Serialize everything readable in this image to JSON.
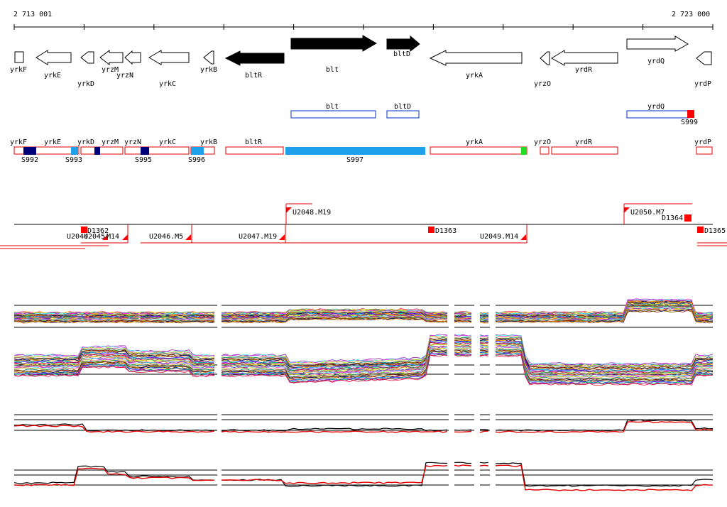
{
  "ruler": {
    "start_label": "2 713 001",
    "end_label": "2 723 000"
  },
  "colors": {
    "gene_fill": "#000000",
    "gene_outline": "#000000",
    "box_blue": "#0033cc",
    "box_red": "#e00000",
    "seg_dark": "#00007a",
    "seg_light": "#1ea0ea",
    "seg_green": "#22dd22",
    "marker_red": "#ff0000"
  },
  "genes_top": [
    {
      "name": "yrkF",
      "strand": "box",
      "filled": false
    },
    {
      "name": "yrkE",
      "strand": "-",
      "filled": false
    },
    {
      "name": "yrkD",
      "strand": "-",
      "filled": false
    },
    {
      "name": "yrzM",
      "strand": "-",
      "filled": false
    },
    {
      "name": "yrzN",
      "strand": "-",
      "filled": false
    },
    {
      "name": "yrkC",
      "strand": "-",
      "filled": false
    },
    {
      "name": "yrkB",
      "strand": "-",
      "filled": false
    },
    {
      "name": "bltR",
      "strand": "-",
      "filled": true
    },
    {
      "name": "blt",
      "strand": "+",
      "filled": true
    },
    {
      "name": "bltD",
      "strand": "+",
      "filled": true
    },
    {
      "name": "yrkA",
      "strand": "-",
      "filled": false
    },
    {
      "name": "yrzO",
      "strand": "-",
      "filled": false
    },
    {
      "name": "yrdR",
      "strand": "-",
      "filled": false
    },
    {
      "name": "yrdQ",
      "strand": "+",
      "filled": false
    },
    {
      "name": "yrdP",
      "strand": "-",
      "filled": false
    }
  ],
  "operon_boxes": [
    {
      "name": "blt"
    },
    {
      "name": "bltD"
    },
    {
      "name": "yrdQ",
      "site": "S999"
    }
  ],
  "segment_row": {
    "gene_labels": [
      "yrkF",
      "yrkE",
      "yrkD",
      "yrzM",
      "yrzN",
      "yrkC",
      "yrkB",
      "bltR",
      "yrkA",
      "yrzO",
      "yrdR",
      "yrdP"
    ],
    "site_labels": [
      "S992",
      "S993",
      "S995",
      "S996",
      "S997"
    ]
  },
  "feature_labels": [
    "U2048.M19",
    "U2050.M7",
    "D1364",
    "D1362",
    "U2044",
    "U2045",
    "M14",
    "U2046.M5",
    "U2047.M19",
    "D1363",
    "U2049.M14",
    "D1365"
  ]
}
